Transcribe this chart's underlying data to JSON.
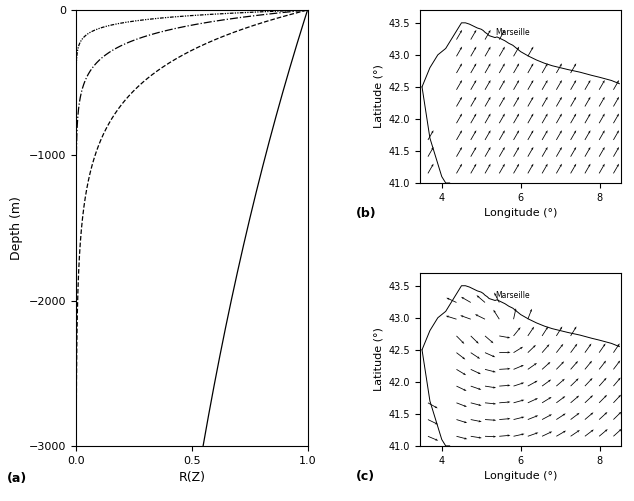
{
  "fig_width": 6.34,
  "fig_height": 5.01,
  "dpi": 100,
  "panel_a_xlabel": "R(Z)",
  "panel_a_ylabel": "Depth (m)",
  "panel_a_label": "(a)",
  "panel_b_xlabel": "Longitude (°)",
  "panel_b_ylabel": "Latitude (°)",
  "panel_b_label": "(b)",
  "panel_c_xlabel": "Longitude (°)",
  "panel_c_ylabel": "Latitude (°)",
  "panel_c_label": "(c)",
  "depth_min": -3000,
  "depth_max": 0,
  "rz_min": 0,
  "rz_max": 1,
  "lon_min": 3.5,
  "lon_max": 8.5,
  "lat_min": 41.0,
  "lat_max": 43.7,
  "marseille_lon": 5.35,
  "marseille_lat": 43.28,
  "background_color": "#ffffff",
  "line_color": "#000000",
  "profile_scales": [
    5000,
    400,
    150,
    55
  ],
  "xticks_rz": [
    0,
    0.5,
    1
  ],
  "yticks_depth": [
    0,
    -1000,
    -2000,
    -3000
  ],
  "lon_ticks": [
    4,
    6,
    8
  ],
  "lat_ticks": [
    41,
    41.5,
    42,
    42.5,
    43,
    43.5
  ]
}
